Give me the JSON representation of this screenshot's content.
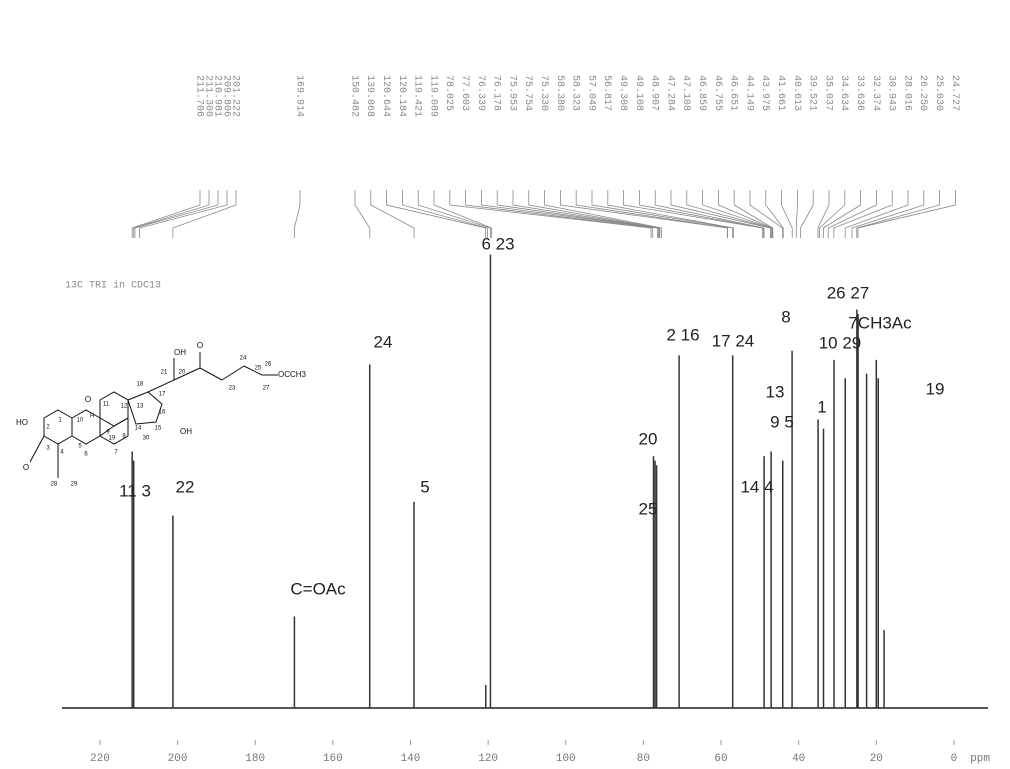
{
  "chart_data": {
    "type": "spectrum",
    "title": "13C TRI in CDC13",
    "x_label": "ppm",
    "x": [
      211.7,
      211.3,
      201.2,
      169.9,
      150.5,
      139.1,
      120.6,
      119.4,
      77.4,
      77.0,
      76.6,
      70.8,
      57.0,
      48.9,
      47.1,
      44.1,
      41.7,
      35.0,
      33.6,
      30.9,
      28.0,
      25.0,
      24.7,
      22.5,
      20.0,
      19.5,
      18.0
    ],
    "values": [
      56,
      54,
      42,
      20,
      75,
      45,
      5,
      99,
      55,
      54,
      53,
      77,
      77,
      55,
      56,
      54,
      78,
      63,
      61,
      76,
      72,
      87,
      86,
      73,
      76,
      72,
      17
    ],
    "color": "#333333",
    "xlim": [
      229,
      -8
    ],
    "ylim": [
      0,
      100
    ],
    "xticks": [
      220,
      200,
      180,
      160,
      140,
      120,
      100,
      80,
      60,
      40,
      20,
      0
    ],
    "peak_labels": [
      "211.706",
      "211.300",
      "210.981",
      "209.806",
      "201.222",
      "169.914",
      "150.482",
      "139.068",
      "120.644",
      "120.184",
      "119.421",
      "119.089",
      "78.025",
      "77.603",
      "76.339",
      "76.178",
      "75.953",
      "75.754",
      "75.330",
      "58.380",
      "58.323",
      "57.049",
      "56.817",
      "49.308",
      "49.108",
      "48.907",
      "47.284",
      "47.108",
      "46.859",
      "46.755",
      "46.651",
      "44.149",
      "43.975",
      "41.661",
      "40.613",
      "39.521",
      "35.037",
      "34.634",
      "33.636",
      "32.374",
      "30.943",
      "28.016",
      "26.250",
      "25.030",
      "24.727"
    ],
    "annotations": [
      "11 3",
      "22",
      "C=OAc",
      "24",
      "5",
      "6 23",
      "20",
      "25",
      "2 16",
      "17 24",
      "14 4",
      "13",
      "9 5",
      "8",
      "1",
      "10 29",
      "26 27",
      "7CH3Ac",
      "19"
    ],
    "structure_atoms": [
      "1",
      "2",
      "3",
      "4",
      "5",
      "6",
      "7",
      "8",
      "9",
      "10",
      "11",
      "12",
      "13",
      "14",
      "15",
      "16",
      "17",
      "18",
      "19",
      "20",
      "21",
      "23",
      "24",
      "25",
      "26",
      "27",
      "28",
      "29",
      "30",
      "H"
    ],
    "structure_groups": [
      "HO",
      "O",
      "O",
      "OH",
      "O",
      "OH",
      "OCCH3"
    ]
  }
}
